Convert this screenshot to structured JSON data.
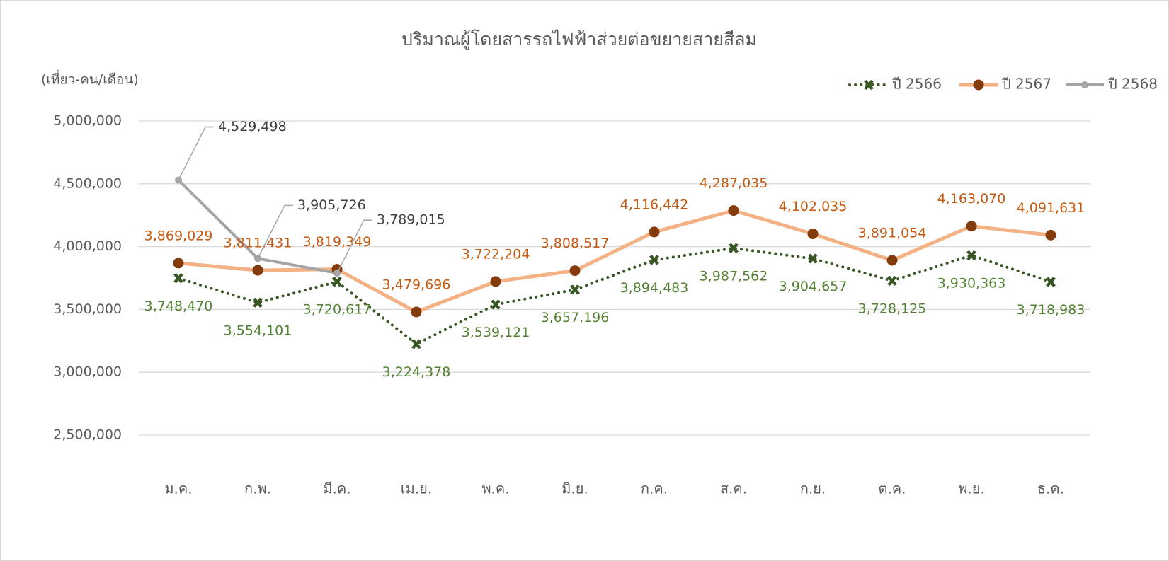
{
  "chart_data": {
    "type": "line",
    "title": "ปริมาณผู้โดยสารรถไฟฟ้าส่วยต่อขยายสายสีลม",
    "y_label": "(เที่ยว-คน/เดือน)",
    "categories": [
      "ม.ค.",
      "ก.พ.",
      "มี.ค.",
      "เม.ย.",
      "พ.ค.",
      "มิ.ย.",
      "ก.ค.",
      "ส.ค.",
      "ก.ย.",
      "ต.ค.",
      "พ.ย.",
      "ธ.ค."
    ],
    "ylim": [
      2500000,
      5000000
    ],
    "yticks": [
      {
        "value": 2500000,
        "label": "2,500,000"
      },
      {
        "value": 3000000,
        "label": "3,000,000"
      },
      {
        "value": 3500000,
        "label": "3,500,000"
      },
      {
        "value": 4000000,
        "label": "4,000,000"
      },
      {
        "value": 4500000,
        "label": "4,500,000"
      },
      {
        "value": 5000000,
        "label": "5,000,000"
      }
    ],
    "grid": true,
    "legend": "top-right",
    "series": [
      {
        "name": "ปี 2566",
        "color": "#375623",
        "label_color": "#548235",
        "style": "dotted",
        "marker": "cross",
        "values": [
          3748470,
          3554101,
          3720617,
          3224378,
          3539121,
          3657196,
          3894483,
          3987562,
          3904657,
          3728125,
          3930363,
          3718983
        ],
        "value_labels": [
          "3,748,470",
          "3,554,101",
          "3,720,617",
          "3,224,378",
          "3,539,121",
          "3,657,196",
          "3,894,483",
          "3,987,562",
          "3,904,657",
          "3,728,125",
          "3,930,363",
          "3,718,983"
        ]
      },
      {
        "name": "ปี 2567",
        "color": "#f4b183",
        "marker_color": "#843c0c",
        "label_color": "#c55a11",
        "style": "solid",
        "marker": "circle",
        "values": [
          3869029,
          3811431,
          3819349,
          3479696,
          3722204,
          3808517,
          4116442,
          4287035,
          4102035,
          3891054,
          4163070,
          4091631
        ],
        "value_labels": [
          "3,869,029",
          "3,811,431",
          "3,819,349",
          "3,479,696",
          "3,722,204",
          "3,808,517",
          "4,116,442",
          "4,287,035",
          "4,102,035",
          "3,891,054",
          "4,163,070",
          "4,091,631"
        ]
      },
      {
        "name": "ปี 2568",
        "color": "#a5a5a5",
        "marker_color": "#a5a5a5",
        "label_color": "#404040",
        "style": "solid",
        "marker": "dot",
        "values": [
          4529498,
          3905726,
          3789015,
          null,
          null,
          null,
          null,
          null,
          null,
          null,
          null,
          null
        ],
        "value_labels": [
          "4,529,498",
          "3,905,726",
          "3,789,015",
          null,
          null,
          null,
          null,
          null,
          null,
          null,
          null,
          null
        ]
      }
    ]
  }
}
